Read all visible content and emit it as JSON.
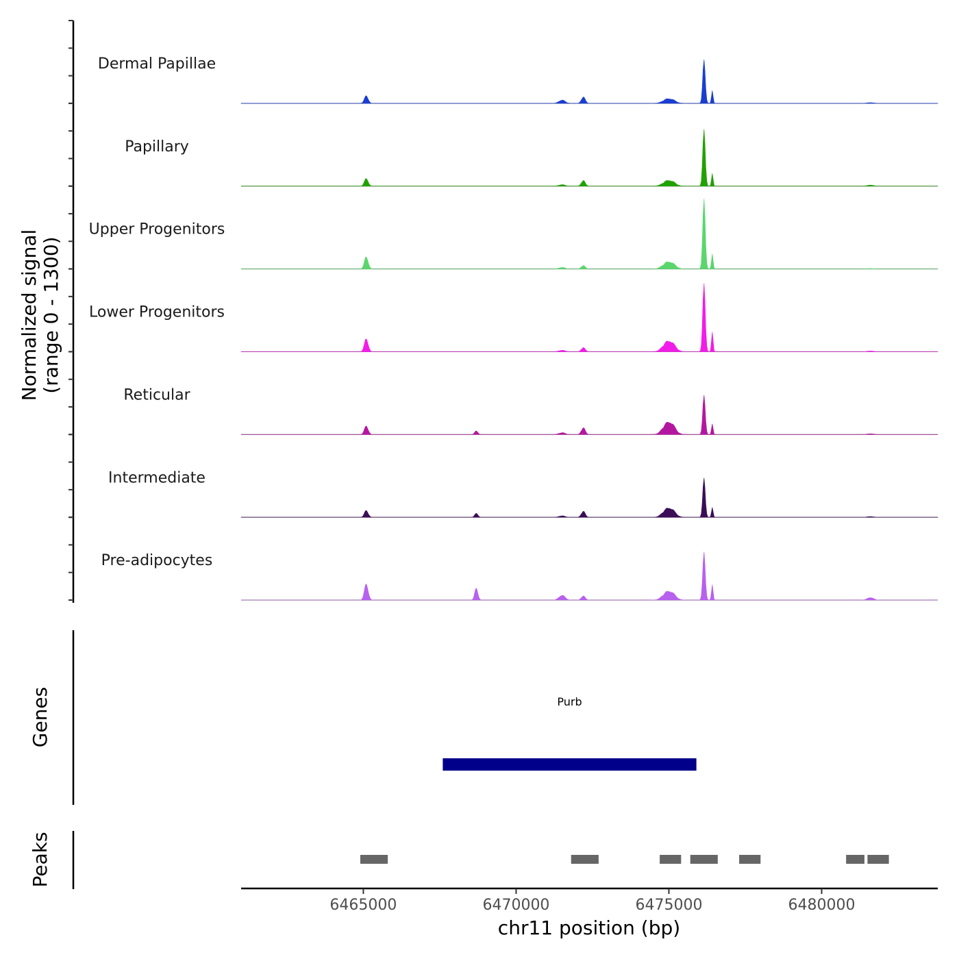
{
  "chart_data": {
    "type": "area",
    "chromosome": "chr11",
    "xlabel": "chr11 position (bp)",
    "xlim": [
      6461000,
      6483800
    ],
    "x_ticks": [
      6465000,
      6470000,
      6475000,
      6480000
    ],
    "x_tick_labels": [
      "6465000",
      "6470000",
      "6475000",
      "6480000"
    ],
    "signal_panel": {
      "ylabel_line1": "Normalized signal",
      "ylabel_line2": "(range 0 - 1300)",
      "ylim": [
        0,
        1300
      ],
      "peak_profile": [
        {
          "center": 6465100,
          "width": 260
        },
        {
          "center": 6468700,
          "width": 220
        },
        {
          "center": 6471500,
          "width": 400
        },
        {
          "center": 6472200,
          "width": 260
        },
        {
          "center": 6475000,
          "width": 700
        },
        {
          "center": 6476150,
          "width": 180
        },
        {
          "center": 6476420,
          "width": 110
        },
        {
          "center": 6481600,
          "width": 400
        }
      ],
      "series": [
        {
          "name": "Dermal Papillae",
          "color": "#1a3ed1",
          "values": [
            190,
            0,
            90,
            170,
            130,
            1000,
            320,
            20
          ]
        },
        {
          "name": "Papillary",
          "color": "#21a102",
          "values": [
            190,
            0,
            40,
            150,
            160,
            1300,
            320,
            30
          ]
        },
        {
          "name": "Upper Progenitors",
          "color": "#5ad66c",
          "values": [
            300,
            0,
            40,
            90,
            200,
            1600,
            380,
            10
          ]
        },
        {
          "name": "Lower Progenitors",
          "color": "#f21ce9",
          "values": [
            320,
            0,
            40,
            110,
            300,
            1560,
            500,
            20
          ]
        },
        {
          "name": "Reticular",
          "color": "#b4179f",
          "values": [
            210,
            90,
            50,
            180,
            350,
            900,
            270,
            20
          ]
        },
        {
          "name": "Intermediate",
          "color": "#3b0e58",
          "values": [
            170,
            100,
            40,
            160,
            260,
            900,
            250,
            20
          ]
        },
        {
          "name": "Pre-adipocytes",
          "color": "#b861ee",
          "values": [
            400,
            300,
            130,
            110,
            250,
            1100,
            390,
            70
          ]
        }
      ]
    },
    "genes_panel": {
      "ylabel": "Genes",
      "genes": [
        {
          "name": "Purb",
          "start": 6467600,
          "end": 6475900,
          "color": "#00008b"
        }
      ]
    },
    "peaks_panel": {
      "ylabel": "Peaks",
      "color": "#666666",
      "peaks": [
        {
          "start": 6464900,
          "end": 6465800
        },
        {
          "start": 6471800,
          "end": 6472700
        },
        {
          "start": 6474700,
          "end": 6475400
        },
        {
          "start": 6475700,
          "end": 6476600
        },
        {
          "start": 6477300,
          "end": 6478000
        },
        {
          "start": 6480800,
          "end": 6481400
        },
        {
          "start": 6481500,
          "end": 6482200
        }
      ]
    }
  }
}
